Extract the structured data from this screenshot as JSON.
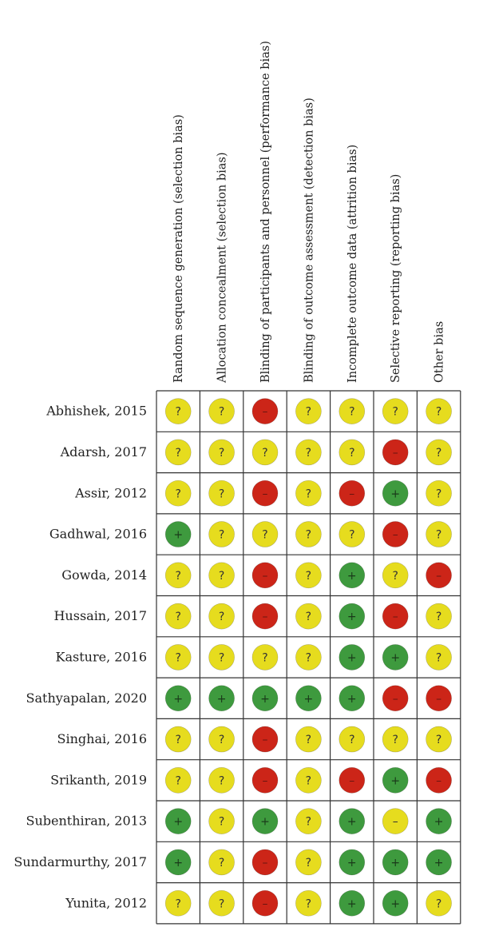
{
  "chart_data": {
    "type": "table",
    "columns": [
      "Random sequence generation (selection bias)",
      "Allocation concealment (selection bias)",
      "Blinding of participants and personnel (performance bias)",
      "Blinding of outcome assessment (detection bias)",
      "Incomplete outcome data (attrition bias)",
      "Selective reporting (reporting bias)",
      "Other bias"
    ],
    "rows": [
      "Abhishek, 2015",
      "Adarsh, 2017",
      "Assir, 2012",
      "Gadhwal, 2016",
      "Gowda, 2014",
      "Hussain, 2017",
      "Kasture, 2016",
      "Sathyapalan, 2020",
      "Singhai, 2016",
      "Srikanth, 2019",
      "Subenthiran, 2013",
      "Sundarmurthy, 2017",
      "Yunita, 2012"
    ],
    "cells": [
      [
        "?",
        "?",
        "-",
        "?",
        "?",
        "?",
        "?"
      ],
      [
        "?",
        "?",
        "?",
        "?",
        "?",
        "-",
        "?"
      ],
      [
        "?",
        "?",
        "-",
        "?",
        "-",
        "+",
        "?"
      ],
      [
        "+",
        "?",
        "?",
        "?",
        "?",
        "-",
        "?"
      ],
      [
        "?",
        "?",
        "-",
        "?",
        "+",
        "?",
        "-"
      ],
      [
        "?",
        "?",
        "-",
        "?",
        "+",
        "-",
        "?"
      ],
      [
        "?",
        "?",
        "?",
        "?",
        "+",
        "+",
        "?"
      ],
      [
        "+",
        "+",
        "+",
        "+",
        "+",
        "-",
        "-"
      ],
      [
        "?",
        "?",
        "-",
        "?",
        "?",
        "?",
        "?"
      ],
      [
        "?",
        "?",
        "-",
        "?",
        "-",
        "+",
        "-"
      ],
      [
        "+",
        "?",
        "+",
        "?",
        "+",
        "-y",
        "+"
      ],
      [
        "+",
        "?",
        "-",
        "?",
        "+",
        "+",
        "+"
      ],
      [
        "?",
        "?",
        "-",
        "?",
        "+",
        "+",
        "?"
      ]
    ],
    "symbols": {
      "?": "?",
      "+": "+",
      "-": "–",
      "-y": "–"
    },
    "colors": {
      "low": "#3e9a3e",
      "unclear": "#e6dc1e",
      "high": "#cc2518",
      "unclear_text": "#333333",
      "low_text": "#1a3a1a",
      "high_text": "#6a1510",
      "grid": "#333333"
    }
  }
}
